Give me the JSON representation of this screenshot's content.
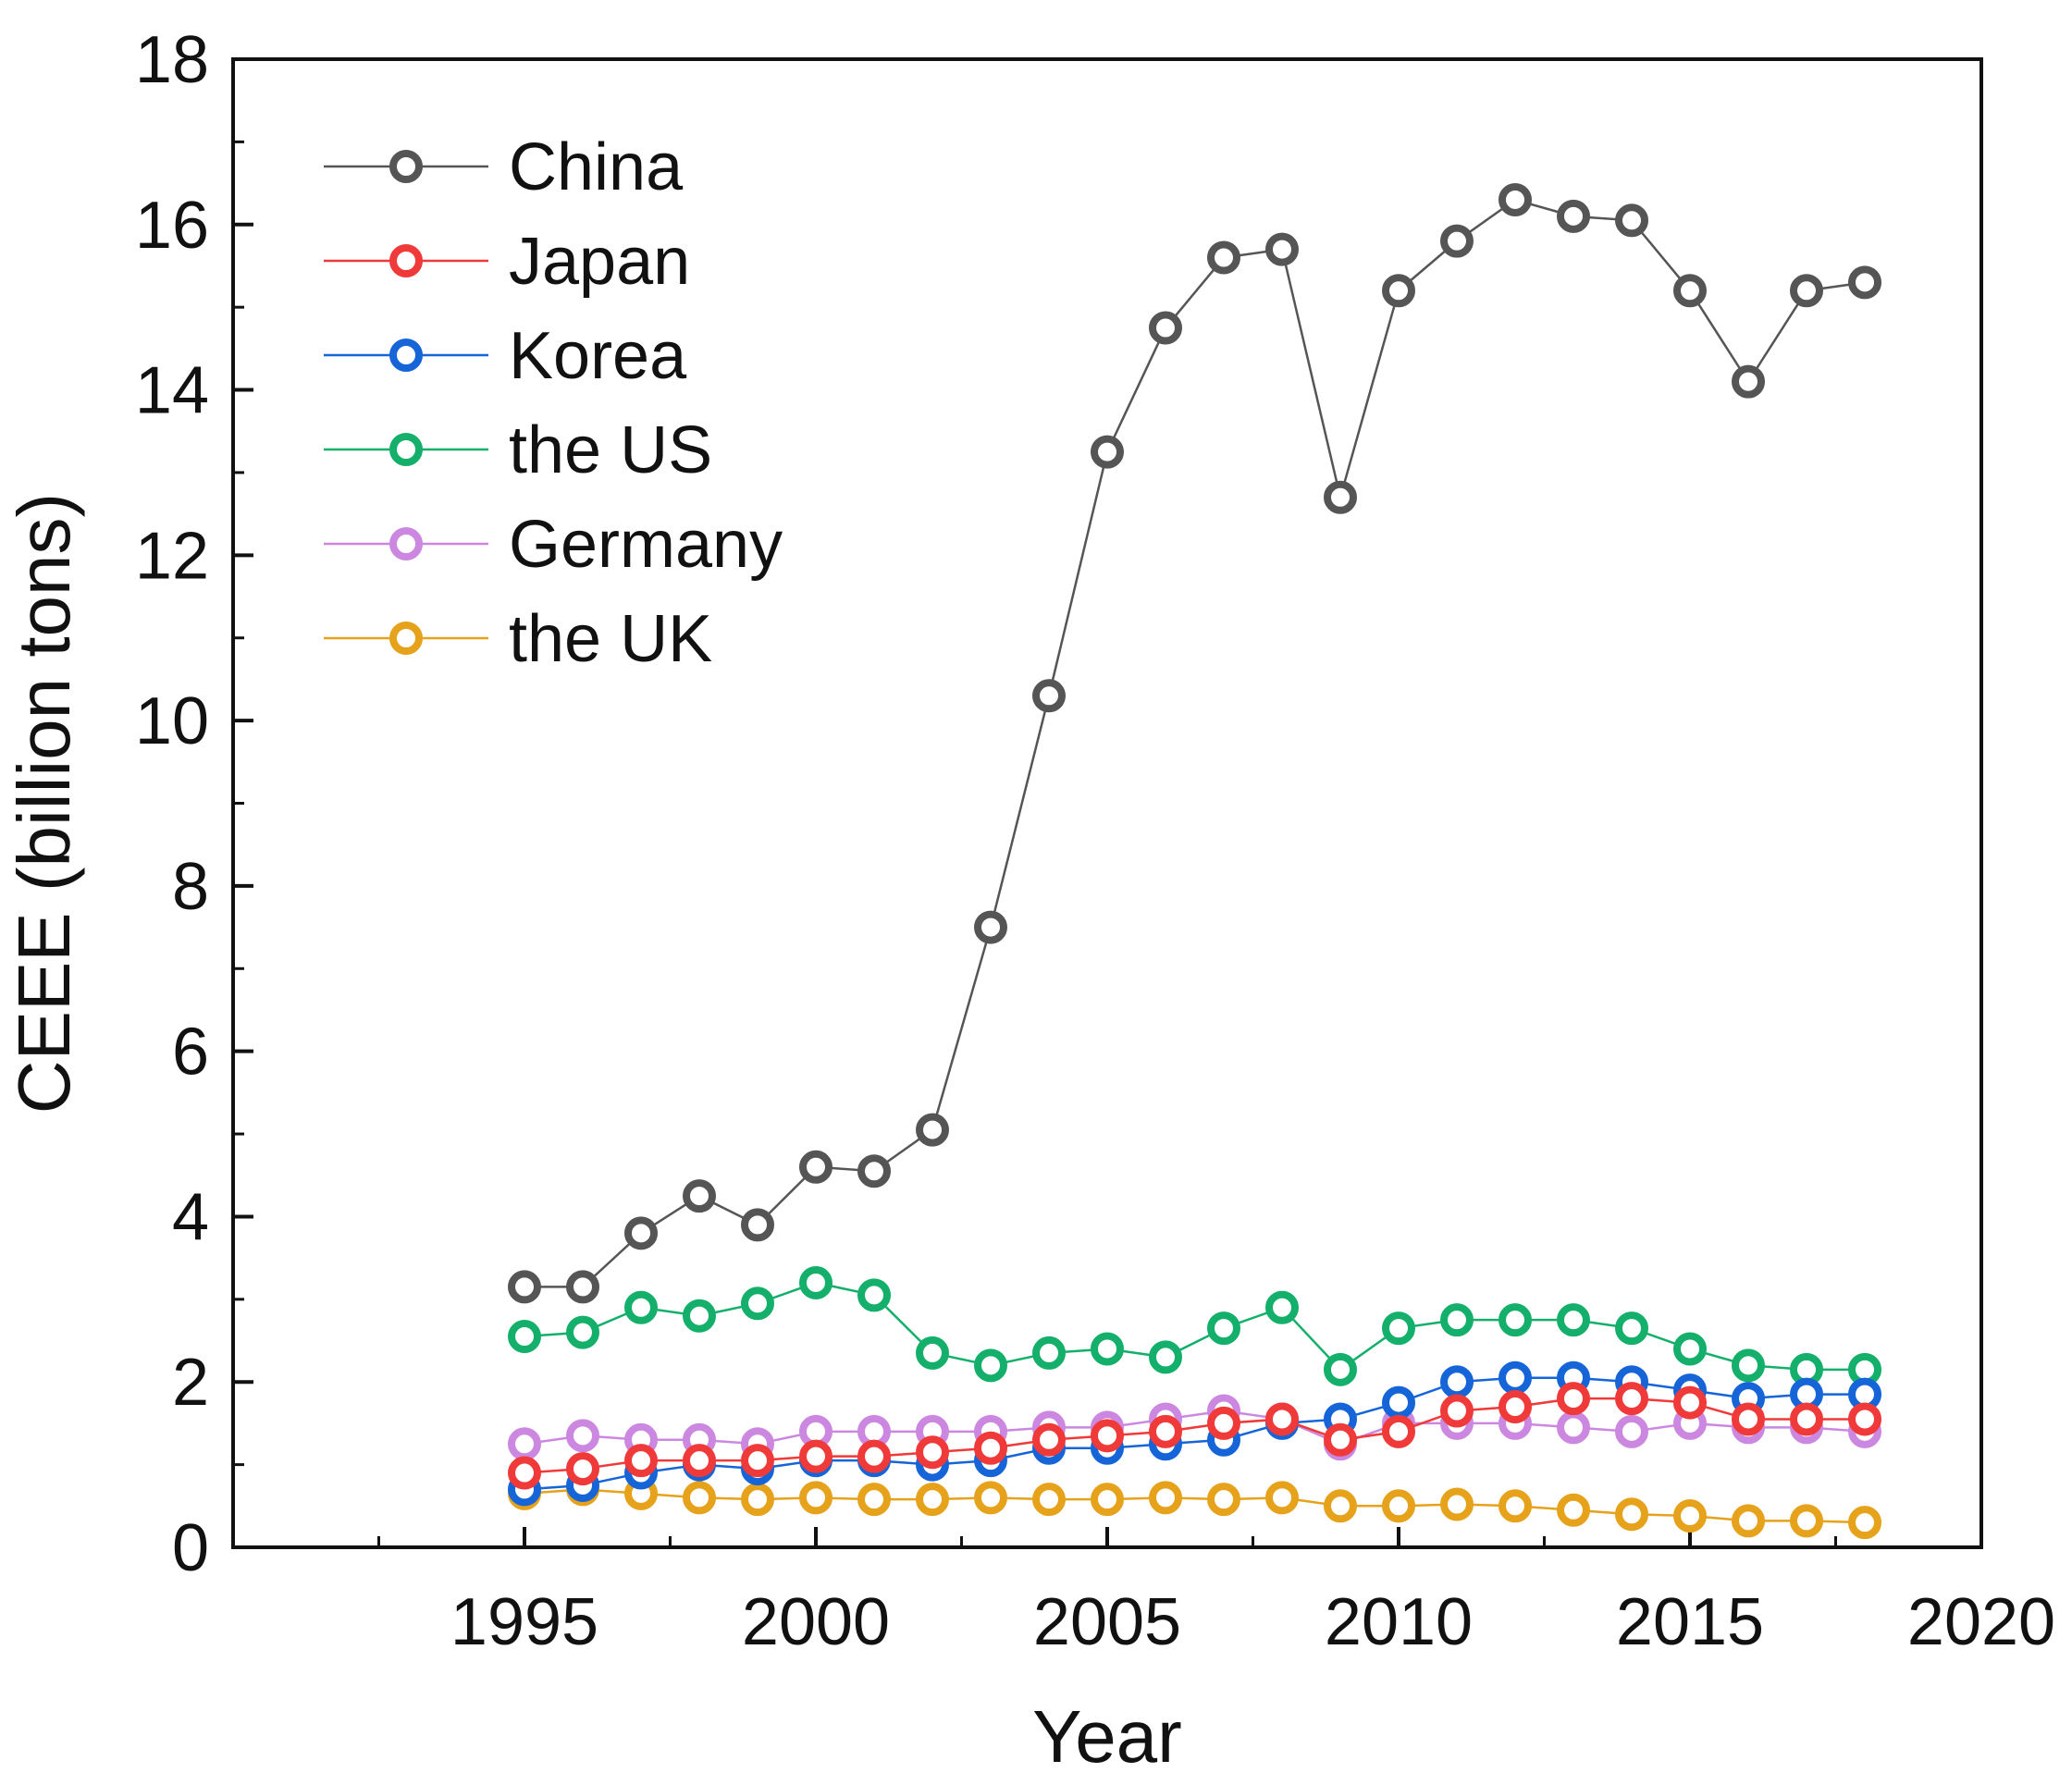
{
  "chart_data": {
    "type": "line",
    "title": "",
    "xlabel": "Year",
    "ylabel": "CEEE (billion tons)",
    "xlim": [
      1990,
      2020
    ],
    "ylim": [
      0,
      18
    ],
    "xticks": [
      1995,
      2000,
      2005,
      2010,
      2015,
      2020
    ],
    "yticks": [
      0,
      2,
      4,
      6,
      8,
      10,
      12,
      14,
      16,
      18
    ],
    "legend_position": "top-left",
    "x": [
      1995,
      1996,
      1997,
      1998,
      1999,
      2000,
      2001,
      2002,
      2003,
      2004,
      2005,
      2006,
      2007,
      2008,
      2009,
      2010,
      2011,
      2012,
      2013,
      2014,
      2015,
      2016,
      2017,
      2018
    ],
    "series": [
      {
        "name": "China",
        "color": "#555555",
        "values": [
          3.15,
          3.15,
          3.8,
          4.25,
          3.9,
          4.6,
          4.55,
          5.05,
          7.5,
          10.3,
          13.25,
          14.75,
          15.6,
          15.7,
          12.7,
          15.2,
          15.8,
          16.3,
          16.1,
          16.05,
          15.2,
          14.1,
          15.2,
          15.3
        ]
      },
      {
        "name": "Japan",
        "color": "#f03a3a",
        "values": [
          0.9,
          0.95,
          1.05,
          1.05,
          1.05,
          1.1,
          1.1,
          1.15,
          1.2,
          1.3,
          1.35,
          1.4,
          1.5,
          1.55,
          1.3,
          1.4,
          1.65,
          1.7,
          1.8,
          1.8,
          1.75,
          1.55,
          1.55,
          1.55
        ]
      },
      {
        "name": "Korea",
        "color": "#1565d8",
        "values": [
          0.7,
          0.75,
          0.9,
          1.0,
          0.95,
          1.05,
          1.05,
          1.0,
          1.05,
          1.2,
          1.2,
          1.25,
          1.3,
          1.5,
          1.55,
          1.75,
          2.0,
          2.05,
          2.05,
          2.0,
          1.9,
          1.8,
          1.85,
          1.85
        ]
      },
      {
        "name": "the US",
        "color": "#14b06b",
        "values": [
          2.55,
          2.6,
          2.9,
          2.8,
          2.95,
          3.2,
          3.05,
          2.35,
          2.2,
          2.35,
          2.4,
          2.3,
          2.65,
          2.9,
          2.15,
          2.65,
          2.75,
          2.75,
          2.75,
          2.65,
          2.4,
          2.2,
          2.15,
          2.15
        ]
      },
      {
        "name": "Germany",
        "color": "#cc88e0",
        "values": [
          1.25,
          1.35,
          1.3,
          1.3,
          1.25,
          1.4,
          1.4,
          1.4,
          1.4,
          1.45,
          1.45,
          1.55,
          1.65,
          1.55,
          1.25,
          1.5,
          1.5,
          1.5,
          1.45,
          1.4,
          1.5,
          1.45,
          1.45,
          1.4
        ]
      },
      {
        "name": "the UK",
        "color": "#e5a21a",
        "values": [
          0.65,
          0.7,
          0.65,
          0.6,
          0.58,
          0.6,
          0.58,
          0.58,
          0.6,
          0.58,
          0.58,
          0.6,
          0.58,
          0.6,
          0.5,
          0.5,
          0.52,
          0.5,
          0.45,
          0.4,
          0.38,
          0.32,
          0.32,
          0.3
        ]
      }
    ]
  }
}
